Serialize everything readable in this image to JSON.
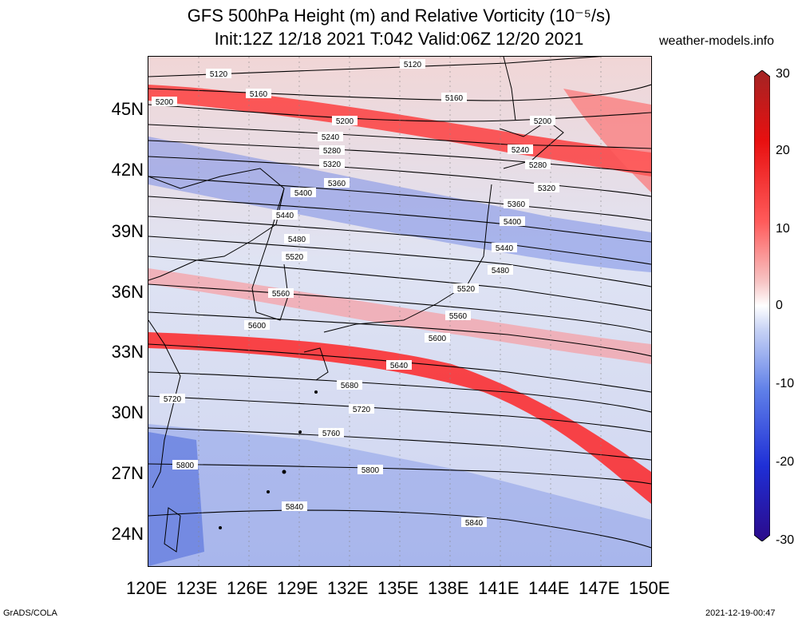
{
  "title": {
    "line1": "GFS 500hPa Height (m) and Relative Vorticity (10⁻⁵/s)",
    "line2": "Init:12Z 12/18 2021 T:042 Valid:06Z 12/20 2021",
    "site": "weather-models.info"
  },
  "axes": {
    "lat_labels": [
      "45N",
      "42N",
      "39N",
      "36N",
      "33N",
      "30N",
      "27N",
      "24N"
    ],
    "lon_labels": [
      "120E",
      "123E",
      "126E",
      "129E",
      "132E",
      "135E",
      "138E",
      "141E",
      "144E",
      "147E",
      "150E"
    ],
    "lat_range": [
      22.5,
      47.5
    ],
    "lon_range": [
      120,
      150
    ]
  },
  "colorbar": {
    "ticks": [
      "30",
      "20",
      "10",
      "0",
      "-10",
      "-20",
      "-30"
    ],
    "range": [
      -30,
      30
    ],
    "colors": [
      "#2b0a8a",
      "#1f2fd6",
      "#5f7fe8",
      "#c8d3f5",
      "#ffffff",
      "#f7c5c5",
      "#ff5a5a",
      "#e81010",
      "#a32424"
    ]
  },
  "contours": [
    "5120",
    "5160",
    "5200",
    "5240",
    "5280",
    "5320",
    "5360",
    "5400",
    "5440",
    "5480",
    "5520",
    "5560",
    "5600",
    "5640",
    "5680",
    "5720",
    "5760",
    "5800",
    "5840"
  ],
  "footer": {
    "left": "GrADS/COLA",
    "right": "2021-12-19-00:47"
  }
}
